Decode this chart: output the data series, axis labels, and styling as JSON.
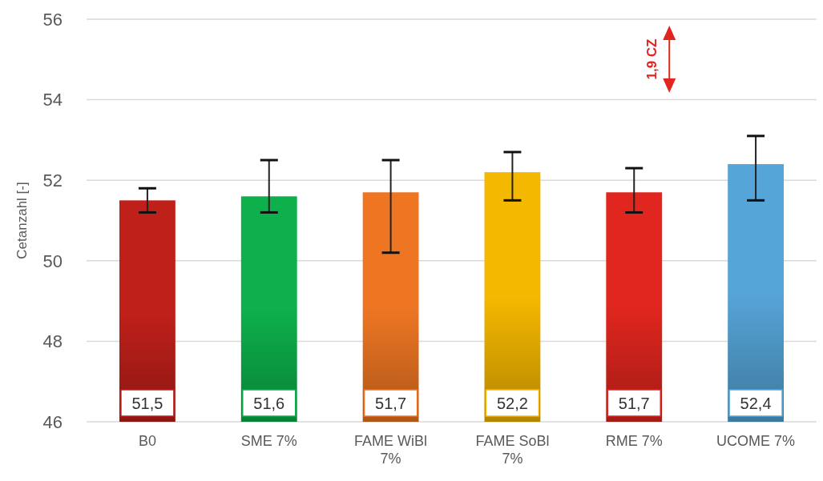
{
  "chart_data": {
    "type": "bar",
    "ylabel": "Cetanzahl [-]",
    "categories": [
      "B0",
      "SME 7%",
      "FAME WiBl 7%",
      "FAME SoBl 7%",
      "RME 7%",
      "UCOME 7%"
    ],
    "values": [
      51.5,
      51.6,
      51.7,
      52.2,
      51.7,
      52.4
    ],
    "value_labels": [
      "51,5",
      "51,6",
      "51,7",
      "52,2",
      "51,7",
      "52,4"
    ],
    "colors": [
      "#c0201a",
      "#0db04b",
      "#ee7623",
      "#f5b800",
      "#e0261e",
      "#56a5d8"
    ],
    "errors": [
      [
        51.2,
        51.8
      ],
      [
        51.2,
        52.5
      ],
      [
        50.2,
        52.5
      ],
      [
        51.5,
        52.7
      ],
      [
        51.2,
        52.3
      ],
      [
        51.5,
        53.1
      ]
    ],
    "ylim": [
      46,
      56
    ],
    "yticks": [
      46,
      48,
      50,
      52,
      54,
      56
    ],
    "grid": "y",
    "annotations": [
      "1,9 CZ"
    ]
  }
}
